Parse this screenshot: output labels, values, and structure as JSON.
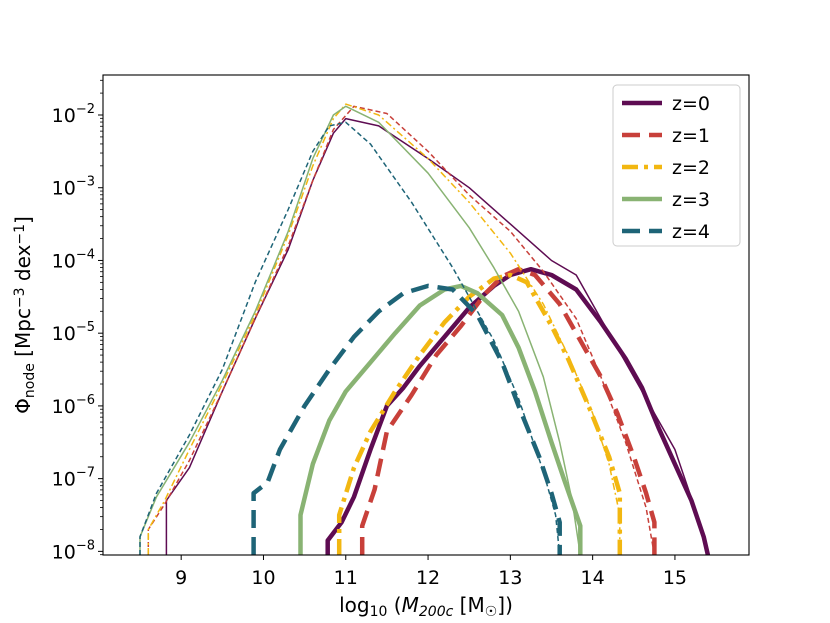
{
  "chart_data": {
    "type": "line",
    "xlabel": "log10 (M200c [M☉])",
    "ylabel": "Φnode [Mpc−3 dex−1]",
    "yscale": "log",
    "xlim": [
      8.05,
      15.9
    ],
    "ylim_log10": [
      -8.05,
      -1.45
    ],
    "xticks": [
      9,
      10,
      11,
      12,
      13,
      14,
      15
    ],
    "xtick_labels": [
      "9",
      "10",
      "11",
      "12",
      "13",
      "14",
      "15"
    ],
    "yticks_log10": [
      -8,
      -7,
      -6,
      -5,
      -4,
      -3,
      -2
    ],
    "ytick_labels": [
      {
        "base": "10",
        "exp": "−8"
      },
      {
        "base": "10",
        "exp": "−7"
      },
      {
        "base": "10",
        "exp": "−6"
      },
      {
        "base": "10",
        "exp": "−5"
      },
      {
        "base": "10",
        "exp": "−4"
      },
      {
        "base": "10",
        "exp": "−3"
      },
      {
        "base": "10",
        "exp": "−2"
      }
    ],
    "legend_position": "top-right",
    "series": [
      {
        "name": "z=0",
        "color": "#5e0c52",
        "style": "solid",
        "thin": [
          [
            8.82,
            -8.05
          ],
          [
            8.82,
            -7.3
          ],
          [
            9.1,
            -6.85
          ],
          [
            9.5,
            -5.8
          ],
          [
            9.9,
            -4.8
          ],
          [
            10.3,
            -3.85
          ],
          [
            10.6,
            -2.9
          ],
          [
            10.85,
            -2.25
          ],
          [
            11.0,
            -2.05
          ],
          [
            11.4,
            -2.15
          ],
          [
            12.0,
            -2.6
          ],
          [
            12.5,
            -3.0
          ],
          [
            13.0,
            -3.5
          ],
          [
            13.5,
            -4.0
          ],
          [
            13.8,
            -4.2
          ],
          [
            14.0,
            -4.6
          ],
          [
            14.3,
            -5.2
          ],
          [
            14.6,
            -5.8
          ],
          [
            15.0,
            -6.6
          ],
          [
            15.3,
            -7.6
          ],
          [
            15.4,
            -8.05
          ]
        ],
        "thick": [
          [
            10.78,
            -8.05
          ],
          [
            10.78,
            -7.85
          ],
          [
            10.95,
            -7.6
          ],
          [
            11.1,
            -7.25
          ],
          [
            11.3,
            -6.6
          ],
          [
            11.5,
            -6.0
          ],
          [
            11.7,
            -5.75
          ],
          [
            11.9,
            -5.45
          ],
          [
            12.2,
            -5.05
          ],
          [
            12.5,
            -4.65
          ],
          [
            12.8,
            -4.35
          ],
          [
            13.0,
            -4.2
          ],
          [
            13.25,
            -4.12
          ],
          [
            13.5,
            -4.2
          ],
          [
            13.8,
            -4.4
          ],
          [
            14.1,
            -4.85
          ],
          [
            14.4,
            -5.35
          ],
          [
            14.6,
            -5.75
          ],
          [
            14.8,
            -6.3
          ],
          [
            15.0,
            -6.8
          ],
          [
            15.2,
            -7.3
          ],
          [
            15.35,
            -7.8
          ],
          [
            15.4,
            -8.05
          ]
        ]
      },
      {
        "name": "z=1",
        "color": "#c8403a",
        "style": "dashed",
        "thin": [
          [
            8.6,
            -8.05
          ],
          [
            8.6,
            -7.7
          ],
          [
            8.8,
            -7.35
          ],
          [
            9.1,
            -6.75
          ],
          [
            9.5,
            -5.8
          ],
          [
            9.9,
            -4.8
          ],
          [
            10.3,
            -3.8
          ],
          [
            10.6,
            -2.9
          ],
          [
            10.85,
            -2.2
          ],
          [
            11.1,
            -1.88
          ],
          [
            11.5,
            -1.98
          ],
          [
            12.0,
            -2.5
          ],
          [
            12.5,
            -3.1
          ],
          [
            13.0,
            -3.6
          ],
          [
            13.4,
            -4.15
          ],
          [
            13.8,
            -4.8
          ],
          [
            14.1,
            -5.6
          ],
          [
            14.4,
            -6.5
          ],
          [
            14.65,
            -7.4
          ],
          [
            14.75,
            -8.05
          ]
        ],
        "thick": [
          [
            11.2,
            -8.05
          ],
          [
            11.2,
            -7.65
          ],
          [
            11.35,
            -7.15
          ],
          [
            11.5,
            -6.35
          ],
          [
            11.8,
            -5.85
          ],
          [
            12.1,
            -5.3
          ],
          [
            12.4,
            -4.9
          ],
          [
            12.7,
            -4.45
          ],
          [
            12.9,
            -4.22
          ],
          [
            13.1,
            -4.12
          ],
          [
            13.3,
            -4.2
          ],
          [
            13.6,
            -4.6
          ],
          [
            13.8,
            -5.0
          ],
          [
            14.1,
            -5.6
          ],
          [
            14.3,
            -6.1
          ],
          [
            14.5,
            -6.7
          ],
          [
            14.65,
            -7.2
          ],
          [
            14.75,
            -7.6
          ],
          [
            14.75,
            -8.05
          ]
        ]
      },
      {
        "name": "z=2",
        "color": "#f2b711",
        "style": "dashdot",
        "thin": [
          [
            8.6,
            -8.05
          ],
          [
            8.6,
            -7.7
          ],
          [
            8.8,
            -7.3
          ],
          [
            9.1,
            -6.6
          ],
          [
            9.5,
            -5.7
          ],
          [
            9.9,
            -4.75
          ],
          [
            10.3,
            -3.65
          ],
          [
            10.6,
            -2.7
          ],
          [
            10.85,
            -2.05
          ],
          [
            11.0,
            -1.85
          ],
          [
            11.4,
            -2.0
          ],
          [
            12.0,
            -2.6
          ],
          [
            12.5,
            -3.2
          ],
          [
            13.0,
            -3.9
          ],
          [
            13.4,
            -4.6
          ],
          [
            13.7,
            -5.3
          ],
          [
            14.0,
            -6.1
          ],
          [
            14.2,
            -6.8
          ],
          [
            14.33,
            -7.5
          ],
          [
            14.33,
            -8.05
          ]
        ],
        "thick": [
          [
            10.92,
            -8.05
          ],
          [
            10.92,
            -7.5
          ],
          [
            11.1,
            -6.85
          ],
          [
            11.3,
            -6.35
          ],
          [
            11.6,
            -5.8
          ],
          [
            11.9,
            -5.3
          ],
          [
            12.2,
            -4.85
          ],
          [
            12.5,
            -4.5
          ],
          [
            12.8,
            -4.25
          ],
          [
            13.0,
            -4.2
          ],
          [
            13.2,
            -4.3
          ],
          [
            13.5,
            -4.9
          ],
          [
            13.7,
            -5.35
          ],
          [
            13.95,
            -6.0
          ],
          [
            14.2,
            -6.7
          ],
          [
            14.33,
            -7.2
          ],
          [
            14.33,
            -8.05
          ]
        ]
      },
      {
        "name": "z=3",
        "color": "#89b373",
        "style": "solid",
        "thin": [
          [
            8.5,
            -8.05
          ],
          [
            8.5,
            -7.8
          ],
          [
            8.7,
            -7.25
          ],
          [
            9.1,
            -6.5
          ],
          [
            9.5,
            -5.65
          ],
          [
            9.9,
            -4.7
          ],
          [
            10.3,
            -3.6
          ],
          [
            10.6,
            -2.6
          ],
          [
            10.85,
            -2.0
          ],
          [
            11.0,
            -1.88
          ],
          [
            11.4,
            -2.1
          ],
          [
            12.0,
            -2.8
          ],
          [
            12.5,
            -3.55
          ],
          [
            12.8,
            -4.1
          ],
          [
            13.1,
            -4.7
          ],
          [
            13.4,
            -5.6
          ],
          [
            13.6,
            -6.5
          ],
          [
            13.75,
            -7.3
          ],
          [
            13.85,
            -8.05
          ]
        ],
        "thick": [
          [
            10.45,
            -8.05
          ],
          [
            10.45,
            -7.5
          ],
          [
            10.6,
            -6.8
          ],
          [
            10.8,
            -6.2
          ],
          [
            11.0,
            -5.8
          ],
          [
            11.3,
            -5.4
          ],
          [
            11.6,
            -5.0
          ],
          [
            11.9,
            -4.62
          ],
          [
            12.2,
            -4.4
          ],
          [
            12.4,
            -4.35
          ],
          [
            12.6,
            -4.45
          ],
          [
            12.9,
            -4.75
          ],
          [
            13.1,
            -5.2
          ],
          [
            13.3,
            -5.8
          ],
          [
            13.5,
            -6.5
          ],
          [
            13.65,
            -7.0
          ],
          [
            13.85,
            -7.65
          ],
          [
            13.85,
            -8.05
          ]
        ]
      },
      {
        "name": "z=4",
        "color": "#1e6477",
        "style": "dashed",
        "thin": [
          [
            8.5,
            -8.05
          ],
          [
            8.5,
            -7.8
          ],
          [
            8.7,
            -7.2
          ],
          [
            9.1,
            -6.4
          ],
          [
            9.5,
            -5.5
          ],
          [
            9.9,
            -4.3
          ],
          [
            10.3,
            -3.3
          ],
          [
            10.6,
            -2.5
          ],
          [
            10.8,
            -2.15
          ],
          [
            11.0,
            -2.1
          ],
          [
            11.3,
            -2.4
          ],
          [
            11.8,
            -3.2
          ],
          [
            12.3,
            -4.1
          ],
          [
            12.8,
            -5.1
          ],
          [
            13.1,
            -5.9
          ],
          [
            13.4,
            -6.9
          ],
          [
            13.55,
            -7.5
          ],
          [
            13.6,
            -8.05
          ]
        ],
        "thick": [
          [
            9.88,
            -8.05
          ],
          [
            9.88,
            -7.2
          ],
          [
            10.05,
            -7.05
          ],
          [
            10.2,
            -6.6
          ],
          [
            10.5,
            -6.0
          ],
          [
            10.8,
            -5.5
          ],
          [
            11.1,
            -5.05
          ],
          [
            11.4,
            -4.7
          ],
          [
            11.7,
            -4.45
          ],
          [
            12.0,
            -4.35
          ],
          [
            12.3,
            -4.4
          ],
          [
            12.6,
            -4.75
          ],
          [
            12.9,
            -5.4
          ],
          [
            13.1,
            -6.0
          ],
          [
            13.35,
            -6.7
          ],
          [
            13.5,
            -7.2
          ],
          [
            13.6,
            -7.6
          ],
          [
            13.6,
            -8.05
          ]
        ]
      }
    ]
  }
}
